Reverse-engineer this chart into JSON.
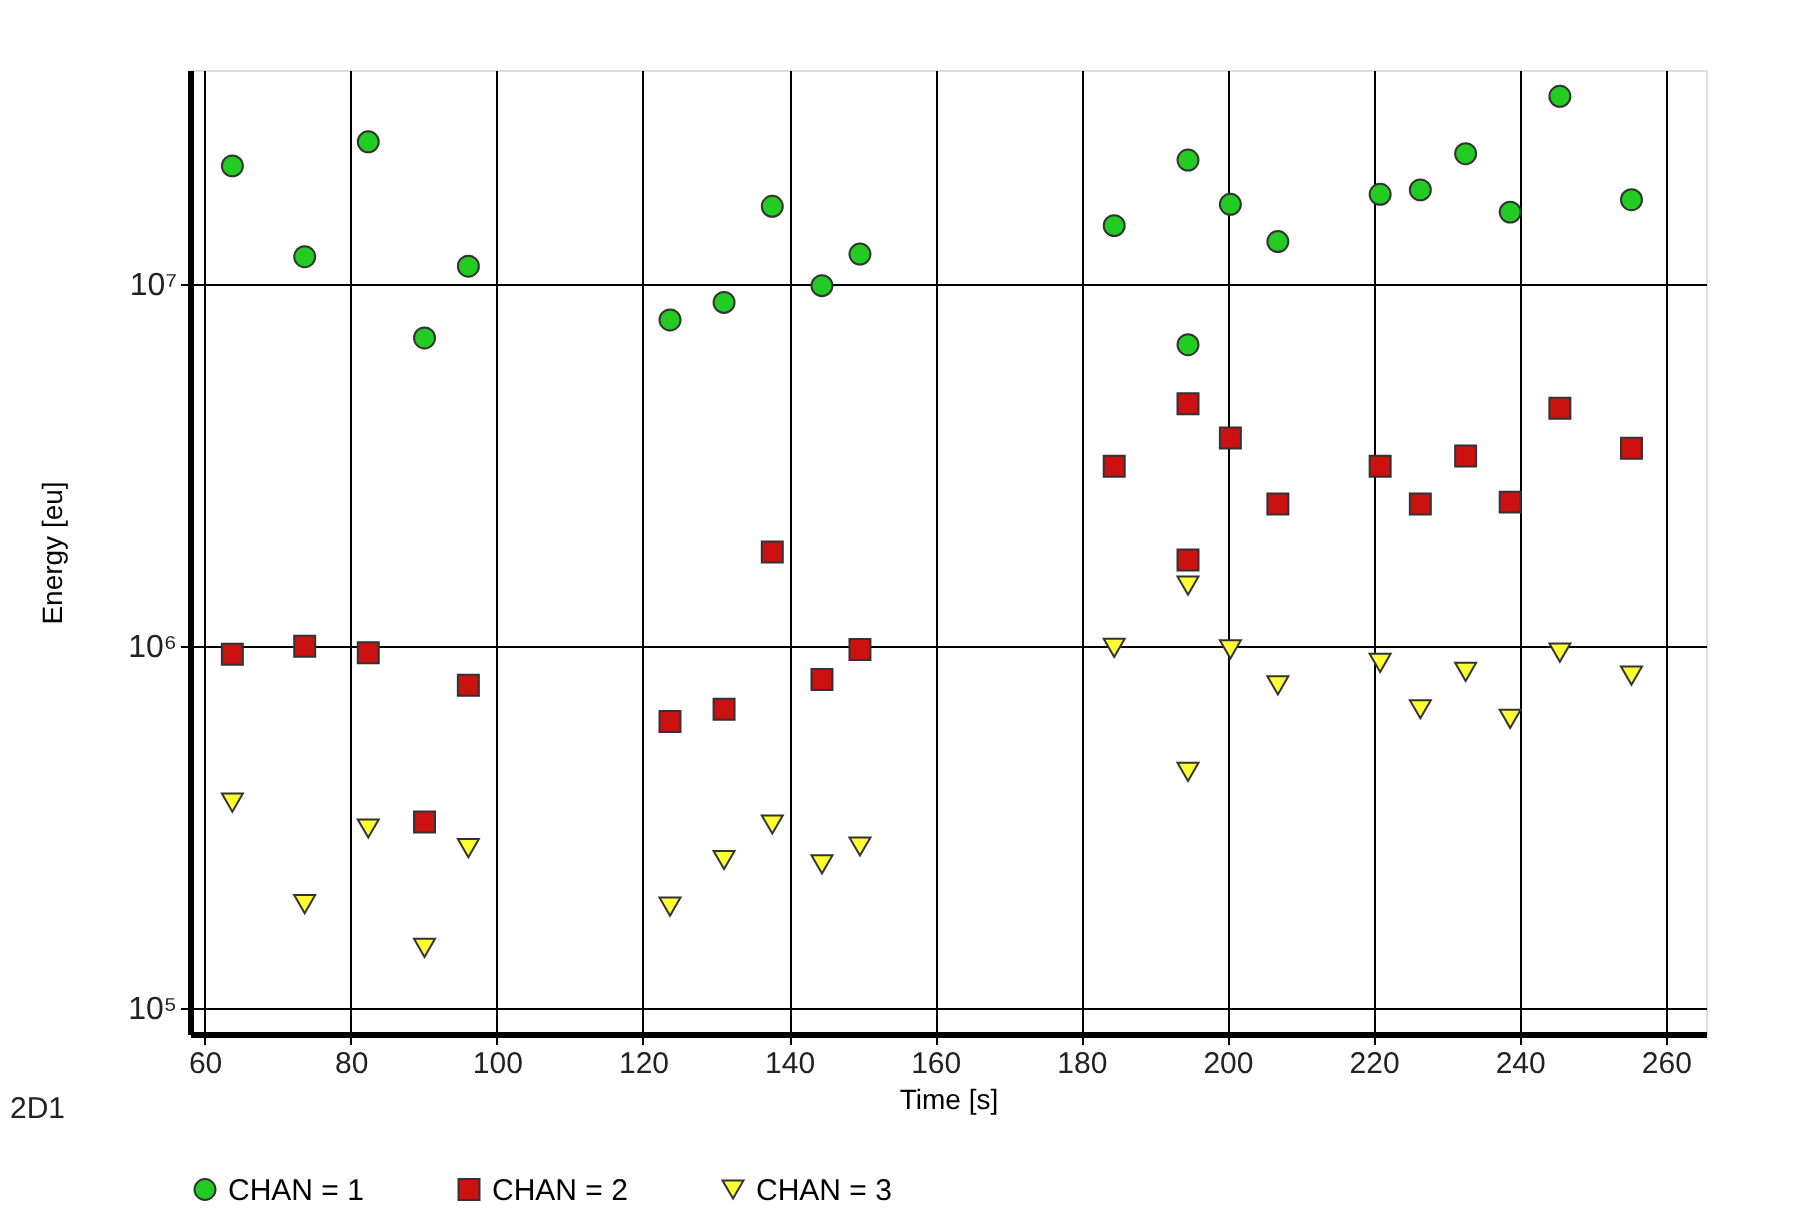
{
  "chart_data": {
    "type": "scatter",
    "xlabel": "Time [s]",
    "ylabel": "Energy [eu]",
    "log": "y",
    "grid": true,
    "legend": "bottom",
    "annotations": [
      "2D1"
    ],
    "xlim": [
      58,
      265.5
    ],
    "xticks": [
      60,
      80,
      100,
      120,
      140,
      160,
      180,
      200,
      220,
      240,
      260
    ],
    "ylim": [
      85000,
      39000000
    ],
    "yticks": [
      {
        "value": 100000,
        "label": "10⁵"
      },
      {
        "value": 1000000,
        "label": "10⁶"
      },
      {
        "value": 10000000,
        "label": "10⁷"
      }
    ],
    "x": [
      63.8,
      73.7,
      82.4,
      90.1,
      96.1,
      123.7,
      131.1,
      137.7,
      144.5,
      149.7,
      184.5,
      194.6,
      194.6,
      200.4,
      206.9,
      220.9,
      226.4,
      232.6,
      238.7,
      245.5,
      255.3
    ],
    "series": [
      {
        "name": "CHAN = 1",
        "color": "#22cc22",
        "marker": "circle",
        "values": [
          21200000,
          11900000,
          24700000,
          7100000,
          11200000,
          7960000,
          8900000,
          16400000,
          9900000,
          12100000,
          14500000,
          22000000,
          6800000,
          16600000,
          13100000,
          17700000,
          18200000,
          22900000,
          15800000,
          33000000,
          17100000
        ]
      },
      {
        "name": "CHAN = 2",
        "color": "#cc1111",
        "marker": "square",
        "values": [
          950000,
          1000000,
          960000,
          327000,
          780000,
          620000,
          670000,
          1820000,
          810000,
          980000,
          3140000,
          4670000,
          1730000,
          3760000,
          2470000,
          3140000,
          2470000,
          3350000,
          2500000,
          4540000,
          3520000
        ]
      },
      {
        "name": "CHAN = 3",
        "color": "#ffff33",
        "marker": "triangle",
        "values": [
          370000,
          194000,
          314000,
          147000,
          277000,
          191000,
          257000,
          322000,
          250000,
          280000,
          990000,
          1470000,
          450000,
          980000,
          780000,
          900000,
          670000,
          850000,
          630000,
          960000,
          830000
        ]
      }
    ]
  }
}
